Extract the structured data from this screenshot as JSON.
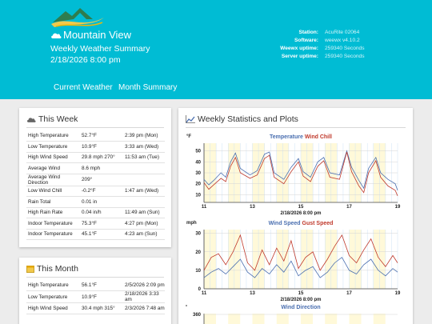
{
  "header": {
    "location": "Mountain View",
    "subtitle": "Weekly Weather Summary",
    "datetime": "2/18/2026 8:00 pm",
    "station_info": [
      {
        "label": "Station:",
        "value": "AcuRite 02064"
      },
      {
        "label": "Software:",
        "value": "weewx v4.10.2"
      },
      {
        "label": "Weewx uptime:",
        "value": "259340 Seconds"
      },
      {
        "label": "Server uptime:",
        "value": "259340 Seconds"
      }
    ]
  },
  "nav": {
    "current_weather": "Current Weather",
    "month_summary": "Month Summary"
  },
  "this_week": {
    "title": "This Week",
    "rows": [
      {
        "label": "High Temperature",
        "value": "52.7°F",
        "time": "2:39 pm (Mon)"
      },
      {
        "label": "Low Temperature",
        "value": "10.9°F",
        "time": "3:33 am (Wed)"
      },
      {
        "label": "High Wind Speed",
        "value": "29.8 mph 270°",
        "time": "11:53 am (Tue)"
      },
      {
        "label": "Average Wind",
        "value": "8.6 mph",
        "time": ""
      },
      {
        "label": "Average Wind Direction",
        "value": "209°",
        "time": ""
      },
      {
        "label": "Low Wind Chill",
        "value": "-0.2°F",
        "time": "1:47 am (Wed)"
      },
      {
        "label": "Rain Total",
        "value": "0.01 in",
        "time": ""
      },
      {
        "label": "High Rain Rate",
        "value": "0.04 in/h",
        "time": "11:49 am (Sun)"
      },
      {
        "label": "Indoor Temperature",
        "value": "75.3°F",
        "time": "4:27 pm (Mon)"
      },
      {
        "label": "Indoor Temperature",
        "value": "45.1°F",
        "time": "4:23 am (Sun)"
      }
    ]
  },
  "this_month": {
    "title": "This Month",
    "rows": [
      {
        "label": "High Temperature",
        "value": "56.1°F",
        "time": "2/5/2026 2:09 pm"
      },
      {
        "label": "Low Temperature",
        "value": "10.9°F",
        "time": "2/18/2026 3:33 am"
      },
      {
        "label": "High Wind Speed",
        "value": "30.4 mph 315°",
        "time": "2/3/2026 7:48 am"
      }
    ]
  },
  "stats": {
    "title": "Weekly Statistics and Plots"
  },
  "colors": {
    "header": "#00bcd4",
    "series1": "#4a6fb0",
    "series2": "#c0392b"
  },
  "icons": {
    "logo": "mountain-logo",
    "cloud": "cloud-icon",
    "calendar": "calendar-icon",
    "chart": "chart-line-icon"
  },
  "chart_data": [
    {
      "type": "line",
      "title_parts": [
        "Temperature",
        "Wind Chill"
      ],
      "ylabel": "°F",
      "xlabel": "2/18/2026 8:00 pm",
      "x_ticks": [
        11,
        13,
        15,
        17,
        19
      ],
      "y_ticks": [
        10,
        20,
        30,
        40,
        50
      ],
      "xlim": [
        11,
        19
      ],
      "ylim": [
        3,
        57
      ],
      "series": [
        {
          "values": [
            [
              11,
              24
            ],
            [
              11.2,
              19
            ],
            [
              11.4,
              23
            ],
            [
              11.7,
              30
            ],
            [
              11.9,
              26
            ],
            [
              12.1,
              40
            ],
            [
              12.3,
              48
            ],
            [
              12.5,
              34
            ],
            [
              12.9,
              28
            ],
            [
              13.2,
              32
            ],
            [
              13.5,
              47
            ],
            [
              13.7,
              49
            ],
            [
              13.9,
              30
            ],
            [
              14.3,
              24
            ],
            [
              14.6,
              35
            ],
            [
              14.9,
              43
            ],
            [
              15.1,
              31
            ],
            [
              15.4,
              26
            ],
            [
              15.7,
              40
            ],
            [
              15.95,
              44
            ],
            [
              16.2,
              30
            ],
            [
              16.6,
              28
            ],
            [
              16.9,
              50
            ],
            [
              17.1,
              35
            ],
            [
              17.4,
              23
            ],
            [
              17.6,
              16
            ],
            [
              17.8,
              34
            ],
            [
              18.1,
              44
            ],
            [
              18.3,
              30
            ],
            [
              18.6,
              24
            ],
            [
              18.9,
              20
            ],
            [
              19,
              14
            ]
          ]
        },
        {
          "values": [
            [
              11,
              21
            ],
            [
              11.2,
              15
            ],
            [
              11.4,
              19
            ],
            [
              11.7,
              25
            ],
            [
              11.9,
              22
            ],
            [
              12.1,
              36
            ],
            [
              12.3,
              44
            ],
            [
              12.5,
              30
            ],
            [
              12.9,
              25
            ],
            [
              13.2,
              28
            ],
            [
              13.5,
              43
            ],
            [
              13.7,
              46
            ],
            [
              13.9,
              26
            ],
            [
              14.3,
              20
            ],
            [
              14.6,
              31
            ],
            [
              14.9,
              40
            ],
            [
              15.1,
              27
            ],
            [
              15.4,
              22
            ],
            [
              15.7,
              36
            ],
            [
              15.95,
              41
            ],
            [
              16.2,
              26
            ],
            [
              16.6,
              24
            ],
            [
              16.9,
              49
            ],
            [
              17.1,
              31
            ],
            [
              17.4,
              18
            ],
            [
              17.6,
              12
            ],
            [
              17.8,
              30
            ],
            [
              18.1,
              41
            ],
            [
              18.3,
              26
            ],
            [
              18.6,
              18
            ],
            [
              18.9,
              14
            ],
            [
              19,
              9
            ]
          ]
        }
      ]
    },
    {
      "type": "line",
      "title_parts": [
        "Wind Speed",
        "Gust Speed"
      ],
      "ylabel": "mph",
      "xlabel": "2/18/2026 8:00 pm",
      "x_ticks": [
        11,
        13,
        15,
        17,
        19
      ],
      "y_ticks": [
        0,
        10,
        20,
        30
      ],
      "xlim": [
        11,
        19
      ],
      "ylim": [
        0,
        32
      ],
      "series": [
        {
          "values": [
            [
              11,
              6
            ],
            [
              11.3,
              9
            ],
            [
              11.6,
              11
            ],
            [
              11.9,
              8
            ],
            [
              12.2,
              12
            ],
            [
              12.5,
              16
            ],
            [
              12.8,
              9
            ],
            [
              13.1,
              6
            ],
            [
              13.4,
              11
            ],
            [
              13.7,
              8
            ],
            [
              14,
              13
            ],
            [
              14.3,
              9
            ],
            [
              14.6,
              15
            ],
            [
              14.9,
              7
            ],
            [
              15.2,
              10
            ],
            [
              15.5,
              12
            ],
            [
              15.8,
              6
            ],
            [
              16.1,
              9
            ],
            [
              16.4,
              14
            ],
            [
              16.7,
              17
            ],
            [
              17,
              10
            ],
            [
              17.3,
              8
            ],
            [
              17.6,
              13
            ],
            [
              17.9,
              16
            ],
            [
              18.2,
              10
            ],
            [
              18.5,
              7
            ],
            [
              18.8,
              11
            ],
            [
              19,
              9
            ]
          ]
        },
        {
          "values": [
            [
              11,
              10
            ],
            [
              11.3,
              17
            ],
            [
              11.6,
              19
            ],
            [
              11.9,
              13
            ],
            [
              12.2,
              20
            ],
            [
              12.5,
              29
            ],
            [
              12.8,
              14
            ],
            [
              13.1,
              10
            ],
            [
              13.4,
              21
            ],
            [
              13.7,
              13
            ],
            [
              14,
              22
            ],
            [
              14.3,
              15
            ],
            [
              14.6,
              26
            ],
            [
              14.9,
              11
            ],
            [
              15.2,
              17
            ],
            [
              15.5,
              20
            ],
            [
              15.8,
              10
            ],
            [
              16.1,
              16
            ],
            [
              16.4,
              23
            ],
            [
              16.7,
              29
            ],
            [
              17,
              18
            ],
            [
              17.3,
              14
            ],
            [
              17.6,
              21
            ],
            [
              17.9,
              27
            ],
            [
              18.2,
              17
            ],
            [
              18.5,
              12
            ],
            [
              18.8,
              18
            ],
            [
              19,
              14
            ]
          ]
        }
      ]
    },
    {
      "type": "scatter",
      "title": "Wind Direction",
      "y_ticks": [
        360
      ],
      "ylim": [
        0,
        360
      ]
    }
  ]
}
